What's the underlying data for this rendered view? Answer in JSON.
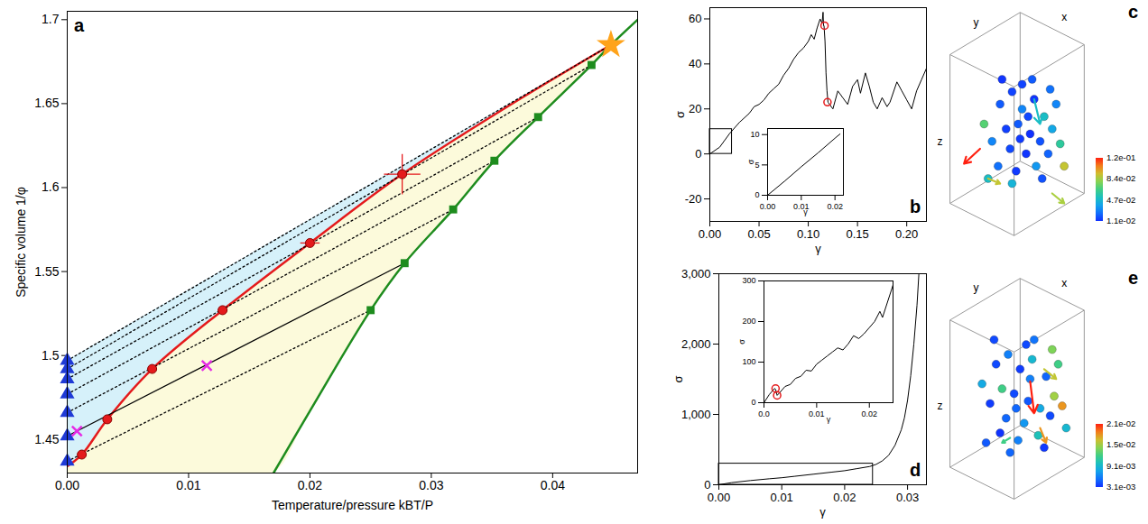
{
  "chart_data": [
    {
      "type": "line",
      "title": "a",
      "xlabel": "Temperature/pressure kBT/P",
      "ylabel": "Specific volume 1/φ",
      "xlim": [
        0,
        0.047
      ],
      "ylim": [
        1.43,
        1.705
      ],
      "xticks": [
        {
          "value": 0,
          "label": "0.00"
        },
        0.01,
        0.02,
        0.03,
        0.04
      ],
      "yticks": [
        1.45,
        1.5,
        1.55,
        1.6,
        1.65,
        1.7
      ],
      "series": [
        {
          "type": "line",
          "color": "#e41a1c",
          "x": [
            0,
            0.0012,
            0.0033,
            0.007,
            0.0128,
            0.02,
            0.0276,
            0.036,
            0.0448
          ],
          "values": [
            1.434,
            1.441,
            1.462,
            1.492,
            1.527,
            1.567,
            1.608,
            1.647,
            1.685
          ]
        },
        {
          "type": "line",
          "color": "#1e8c1e",
          "x": [
            0.017,
            0.02,
            0.025,
            0.0278,
            0.0318,
            0.0352,
            0.0388,
            0.0432,
            0.0448,
            0.047
          ],
          "values": [
            1.43,
            1.467,
            1.527,
            1.555,
            1.587,
            1.616,
            1.642,
            1.673,
            1.685,
            1.7
          ]
        },
        {
          "type": "line",
          "color": "#000000",
          "line_style": "dotted",
          "x": [
            0,
            0.025
          ],
          "values": [
            1.437,
            1.527
          ]
        },
        {
          "type": "line",
          "color": "#000000",
          "line_style": "solid",
          "x": [
            0,
            0.0278
          ],
          "values": [
            1.452,
            1.555
          ]
        },
        {
          "type": "line",
          "color": "#000000",
          "line_style": "dotted",
          "x": [
            0,
            0.0318
          ],
          "values": [
            1.466,
            1.587
          ]
        },
        {
          "type": "line",
          "color": "#000000",
          "line_style": "dotted",
          "x": [
            0,
            0.0352
          ],
          "values": [
            1.477,
            1.616
          ]
        },
        {
          "type": "line",
          "color": "#000000",
          "line_style": "dotted",
          "x": [
            0,
            0.0388
          ],
          "values": [
            1.486,
            1.642
          ]
        },
        {
          "type": "line",
          "color": "#000000",
          "line_style": "dotted",
          "x": [
            0,
            0.0432
          ],
          "values": [
            1.492,
            1.673
          ]
        },
        {
          "type": "line",
          "color": "#000000",
          "line_style": "dotted",
          "x": [
            0,
            0.0448
          ],
          "values": [
            1.497,
            1.685
          ]
        },
        {
          "type": "scatter",
          "marker": "circle",
          "color": "#e41a1c",
          "x": [
            0.0012,
            0.0033,
            0.007,
            0.0128,
            0.02,
            0.0276
          ],
          "values": [
            1.441,
            1.462,
            1.492,
            1.527,
            1.567,
            1.608
          ],
          "xerr": [
            0,
            0,
            0.0004,
            0.0004,
            0.0008,
            0.0015
          ],
          "yerr": [
            0,
            0,
            0,
            0,
            0,
            0.012
          ]
        },
        {
          "type": "scatter",
          "marker": "square",
          "color": "#1e8c1e",
          "x": [
            0.025,
            0.0278,
            0.0318,
            0.0352,
            0.0388,
            0.0432
          ],
          "values": [
            1.527,
            1.555,
            1.587,
            1.616,
            1.642,
            1.673
          ]
        },
        {
          "type": "scatter",
          "marker": "triangle",
          "color": "#1f3ad6",
          "x": [
            0,
            0,
            0,
            0,
            0,
            0,
            0
          ],
          "values": [
            1.437,
            1.452,
            1.466,
            1.477,
            1.486,
            1.492,
            1.497
          ]
        },
        {
          "type": "scatter",
          "marker": "x",
          "color": "#e62ae6",
          "x": [
            0.0008,
            0.0115
          ],
          "values": [
            1.455,
            1.494
          ]
        },
        {
          "type": "scatter",
          "marker": "star",
          "color": "#ffa31a",
          "x": [
            0.0448
          ],
          "values": [
            1.685
          ]
        }
      ]
    },
    {
      "type": "line",
      "title": "b",
      "xlabel": "γ",
      "ylabel": "σ",
      "xlim": [
        0,
        0.22
      ],
      "ylim": [
        -30,
        65
      ],
      "xticks": [
        {
          "value": 0,
          "label": "0.00"
        },
        0.05,
        {
          "value": 0.1,
          "label": "0.10"
        },
        0.15,
        {
          "value": 0.2,
          "label": "0.20"
        }
      ],
      "yticks": [
        -20,
        0,
        20,
        40,
        60
      ],
      "series": [
        {
          "type": "line",
          "color": "#000000",
          "x": [
            0,
            0.01,
            0.02,
            0.03,
            0.04,
            0.045,
            0.05,
            0.055,
            0.06,
            0.065,
            0.07,
            0.075,
            0.08,
            0.085,
            0.09,
            0.095,
            0.1,
            0.103,
            0.106,
            0.109,
            0.112,
            0.114,
            0.115,
            0.1155,
            0.116,
            0.117,
            0.118,
            0.119,
            0.12,
            0.125,
            0.13,
            0.135,
            0.14,
            0.145,
            0.15,
            0.153,
            0.158,
            0.162,
            0.166,
            0.17,
            0.175,
            0.18,
            0.183,
            0.19,
            0.195,
            0.2,
            0.205,
            0.21,
            0.215,
            0.22
          ],
          "values": [
            0,
            3,
            9,
            14,
            18,
            21,
            22,
            24,
            27,
            29,
            31,
            35,
            38,
            42,
            45,
            47,
            50,
            53,
            51,
            56,
            60,
            58,
            63,
            57,
            57,
            50,
            36,
            28,
            23,
            20,
            28,
            25,
            22,
            30,
            33,
            27,
            36,
            30,
            23,
            20,
            25,
            21,
            23,
            32,
            28,
            24,
            20,
            28,
            33,
            38
          ]
        },
        {
          "type": "scatter",
          "marker": "circle_open",
          "color": "#e41a1c",
          "x": [
            0.1165,
            0.1195
          ],
          "values": [
            57,
            23
          ]
        }
      ]
    },
    {
      "type": "line",
      "xlabel": "γ",
      "ylabel": "σ",
      "xlim": [
        0,
        0.0225
      ],
      "ylim": [
        0,
        11
      ],
      "xticks": [
        {
          "value": 0,
          "label": "0.00"
        },
        0.01,
        0.02
      ],
      "yticks": [
        0,
        5,
        10
      ],
      "series": [
        {
          "type": "line",
          "color": "#000000",
          "x": [
            0,
            0.005,
            0.01,
            0.015,
            0.02,
            0.0215
          ],
          "values": [
            0,
            2.3,
            4.7,
            7,
            9.4,
            10.1
          ]
        }
      ]
    },
    {
      "type": "line",
      "title": "d",
      "xlabel": "γ",
      "ylabel": "σ",
      "xlim": [
        0,
        0.033
      ],
      "ylim": [
        0,
        3000
      ],
      "xticks": [
        {
          "value": 0,
          "label": "0.00"
        },
        0.01,
        0.02,
        0.03
      ],
      "yticks": [
        0,
        {
          "value": 1000,
          "label": "1,000"
        },
        {
          "value": 2000,
          "label": "2,000"
        },
        {
          "value": 3000,
          "label": "3,000"
        }
      ],
      "series": [
        {
          "type": "line",
          "color": "#000000",
          "x": [
            0,
            0.002,
            0.005,
            0.008,
            0.01,
            0.012,
            0.015,
            0.018,
            0.02,
            0.022,
            0.024,
            0.025,
            0.026,
            0.027,
            0.028,
            0.029,
            0.0295,
            0.03,
            0.0305,
            0.031,
            0.0315,
            0.0318
          ],
          "values": [
            0,
            30,
            60,
            85,
            100,
            120,
            150,
            180,
            200,
            230,
            260,
            290,
            340,
            420,
            560,
            780,
            950,
            1200,
            1550,
            2000,
            2550,
            3000
          ]
        }
      ]
    },
    {
      "type": "line",
      "xlabel": "γ",
      "ylabel": "σ",
      "xlim": [
        0,
        0.0245
      ],
      "ylim": [
        0,
        300
      ],
      "xticks": [
        {
          "value": 0,
          "label": "0.0"
        },
        0.01,
        0.02
      ],
      "yticks": [
        0,
        100,
        200,
        300
      ],
      "series": [
        {
          "type": "line",
          "color": "#000000",
          "x": [
            0,
            0.001,
            0.002,
            0.0022,
            0.0025,
            0.003,
            0.004,
            0.005,
            0.006,
            0.007,
            0.008,
            0.009,
            0.01,
            0.011,
            0.012,
            0.013,
            0.014,
            0.015,
            0.016,
            0.017,
            0.018,
            0.019,
            0.02,
            0.021,
            0.022,
            0.0225,
            0.023,
            0.024,
            0.0245
          ],
          "values": [
            0,
            20,
            35,
            33,
            18,
            25,
            40,
            45,
            60,
            65,
            80,
            78,
            95,
            105,
            115,
            125,
            135,
            130,
            145,
            165,
            158,
            170,
            185,
            200,
            225,
            210,
            230,
            270,
            290
          ]
        },
        {
          "type": "scatter",
          "marker": "circle_open",
          "color": "#e41a1c",
          "x": [
            0.0022,
            0.0025
          ],
          "values": [
            35,
            18
          ]
        }
      ]
    },
    {
      "type": "scatter",
      "title": "c",
      "tick_labels": false,
      "xlabel": "x",
      "ylabel": "y",
      "zlabel": "z",
      "xlim": [
        0,
        1
      ],
      "ylim": [
        0,
        1
      ],
      "x": [
        0.3,
        0.36,
        0.41,
        0.47,
        0.52,
        0.33,
        0.39,
        0.45,
        0.5,
        0.56,
        0.26,
        0.35,
        0.43,
        0.54,
        0.6,
        0.29,
        0.38,
        0.48,
        0.41,
        0.46,
        0.22,
        0.58,
        0.36,
        0.51,
        0.31,
        0.44,
        0.55,
        0.62,
        0.24,
        0.4
      ],
      "y": [
        0.6,
        0.65,
        0.58,
        0.62,
        0.55,
        0.5,
        0.52,
        0.48,
        0.45,
        0.5,
        0.45,
        0.42,
        0.4,
        0.4,
        0.44,
        0.35,
        0.33,
        0.35,
        0.68,
        0.7,
        0.52,
        0.6,
        0.28,
        0.3,
        0.7,
        0.55,
        0.66,
        0.35,
        0.3,
        0.46
      ],
      "values": [
        0.02,
        0.015,
        0.03,
        0.012,
        0.05,
        0.014,
        0.02,
        0.011,
        0.018,
        0.04,
        0.03,
        0.016,
        0.012,
        0.022,
        0.06,
        0.025,
        0.013,
        0.035,
        0.015,
        0.02,
        0.07,
        0.03,
        0.045,
        0.018,
        0.012,
        0.016,
        0.025,
        0.09,
        0.05,
        0.013
      ],
      "arrows": {
        "x1": [
          0.2,
          0.24,
          0.56,
          0.47
        ],
        "y1": [
          0.42,
          0.3,
          0.24,
          0.62
        ],
        "x2": [
          0.12,
          0.3,
          0.62,
          0.5
        ],
        "y2": [
          0.36,
          0.28,
          0.2,
          0.52
        ],
        "values": [
          0.12,
          0.09,
          0.085,
          0.05
        ]
      },
      "colorbar_lim": [
        0.011,
        0.12
      ],
      "colorbar_ticks": [
        {
          "value": 0.011,
          "label": "1.1e-02"
        },
        {
          "value": 0.047,
          "label": "4.7e-02"
        },
        {
          "value": 0.084,
          "label": "8.4e-02"
        },
        {
          "value": 0.12,
          "label": "1.2e-01"
        }
      ]
    },
    {
      "type": "scatter",
      "title": "e",
      "tick_labels": false,
      "xlabel": "x",
      "ylabel": "y",
      "zlabel": "z",
      "xlim": [
        0,
        1
      ],
      "ylim": [
        0,
        1
      ],
      "x": [
        0.28,
        0.34,
        0.4,
        0.46,
        0.53,
        0.31,
        0.37,
        0.44,
        0.5,
        0.57,
        0.25,
        0.33,
        0.42,
        0.55,
        0.61,
        0.3,
        0.39,
        0.49,
        0.43,
        0.47,
        0.21,
        0.59,
        0.35,
        0.52,
        0.27,
        0.45,
        0.56,
        0.63,
        0.23,
        0.38
      ],
      "y": [
        0.62,
        0.66,
        0.6,
        0.64,
        0.57,
        0.52,
        0.5,
        0.47,
        0.44,
        0.49,
        0.46,
        0.4,
        0.38,
        0.41,
        0.45,
        0.34,
        0.31,
        0.33,
        0.7,
        0.72,
        0.54,
        0.62,
        0.26,
        0.28,
        0.72,
        0.56,
        0.68,
        0.36,
        0.3,
        0.44
      ],
      "values": [
        0.004,
        0.006,
        0.0035,
        0.009,
        0.005,
        0.012,
        0.004,
        0.0045,
        0.008,
        0.015,
        0.0035,
        0.005,
        0.007,
        0.004,
        0.018,
        0.0032,
        0.006,
        0.01,
        0.004,
        0.0055,
        0.008,
        0.012,
        0.005,
        0.0034,
        0.004,
        0.006,
        0.014,
        0.009,
        0.0045,
        0.005
      ],
      "arrows": {
        "x1": [
          0.45,
          0.52,
          0.5,
          0.35
        ],
        "y1": [
          0.55,
          0.6,
          0.36,
          0.32
        ],
        "x2": [
          0.47,
          0.58,
          0.53,
          0.31
        ],
        "y2": [
          0.42,
          0.56,
          0.3,
          0.3
        ],
        "values": [
          0.021,
          0.016,
          0.018,
          0.012
        ]
      },
      "colorbar_lim": [
        0.0031,
        0.021
      ],
      "colorbar_ticks": [
        {
          "value": 0.0031,
          "label": "3.1e-03"
        },
        {
          "value": 0.0091,
          "label": "9.1e-03"
        },
        {
          "value": 0.015,
          "label": "1.5e-02"
        },
        {
          "value": 0.021,
          "label": "2.1e-02"
        }
      ]
    }
  ]
}
